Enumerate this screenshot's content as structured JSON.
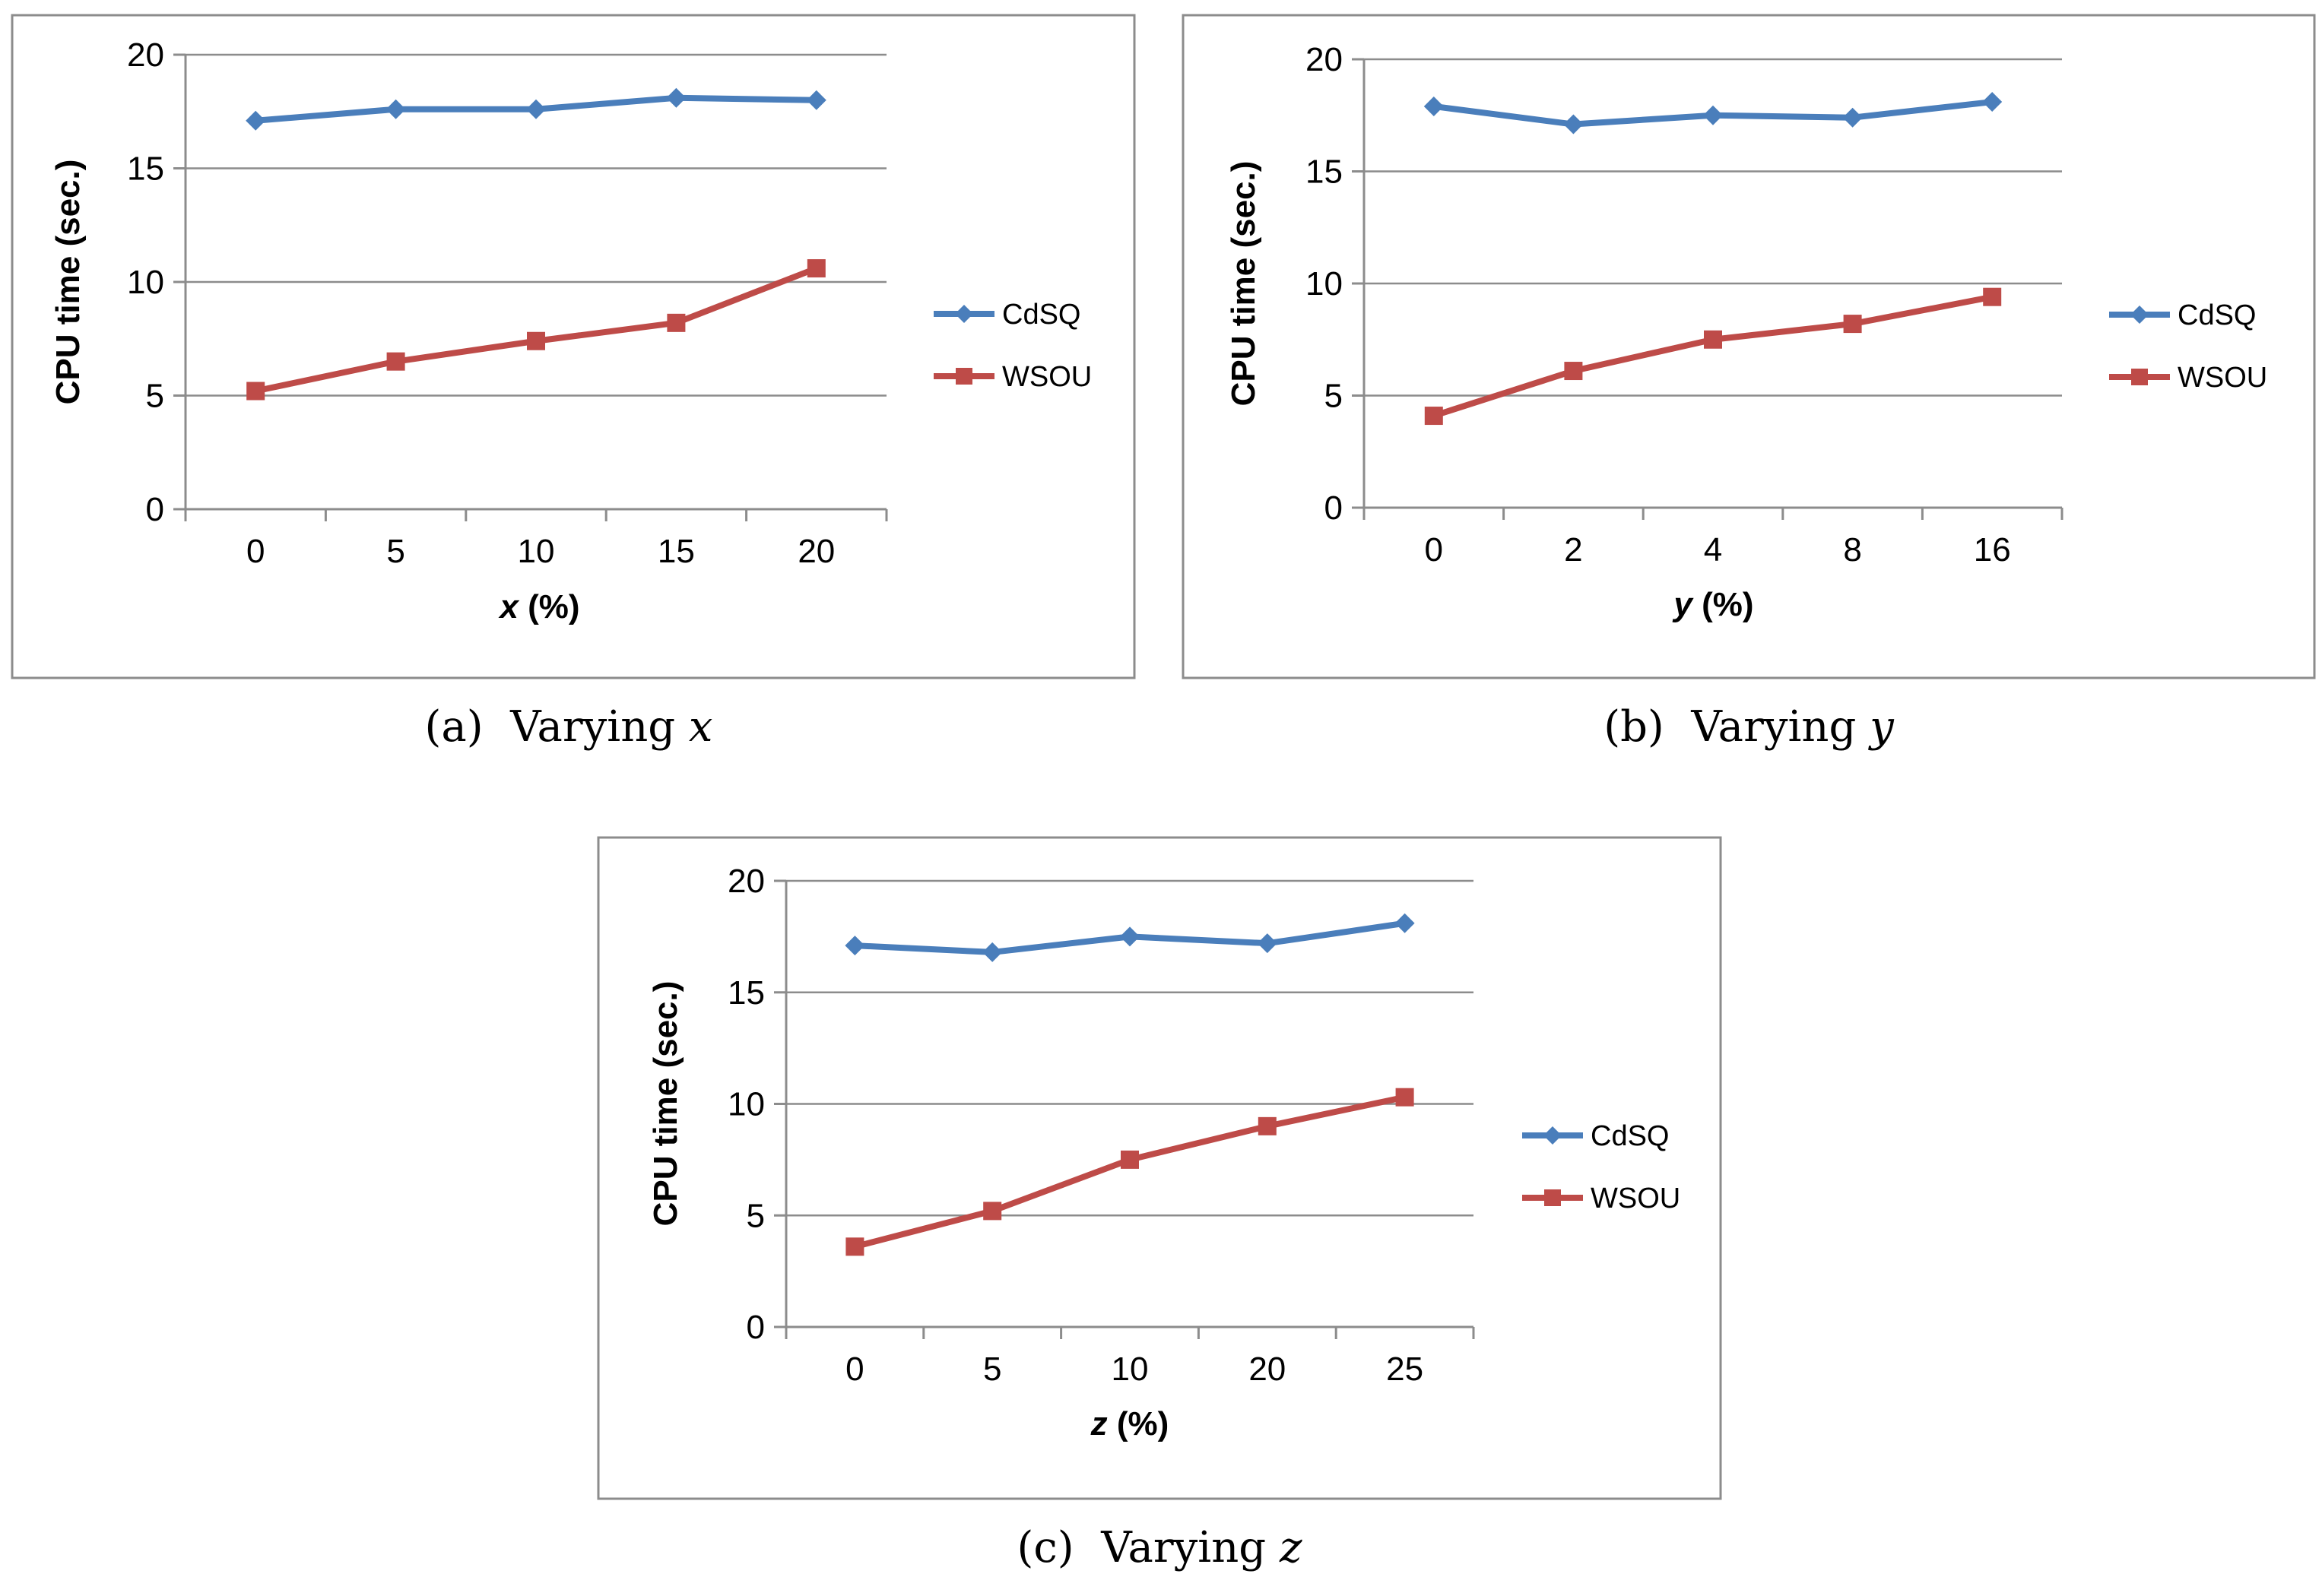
{
  "chart_data": [
    {
      "type": "line",
      "caption_prefix": "(a)  Varying ",
      "caption_var": "x",
      "title": "",
      "xlabel_var": "x",
      "xlabel_rest": " (%)",
      "ylabel": "CPU time (sec.)",
      "ylim": [
        0,
        20
      ],
      "yticks": [
        "0",
        "5",
        "10",
        "15",
        "20"
      ],
      "categories": [
        "0",
        "5",
        "10",
        "15",
        "20"
      ],
      "series": [
        {
          "name": "CdSQ",
          "color": "#4a7ebb",
          "marker": "diamond",
          "values": [
            17.1,
            17.6,
            17.6,
            18.1,
            18.0
          ]
        },
        {
          "name": "WSOU",
          "color": "#be4b48",
          "marker": "square",
          "values": [
            5.2,
            6.5,
            7.4,
            8.2,
            10.6
          ]
        }
      ],
      "legend": "right",
      "grid": true
    },
    {
      "type": "line",
      "caption_prefix": "(b)  Varying ",
      "caption_var": "y",
      "title": "",
      "xlabel_var": "y",
      "xlabel_rest": " (%)",
      "ylabel": "CPU time (sec.)",
      "ylim": [
        0,
        20
      ],
      "yticks": [
        "0",
        "5",
        "10",
        "15",
        "20"
      ],
      "categories": [
        "0",
        "2",
        "4",
        "8",
        "16"
      ],
      "series": [
        {
          "name": "CdSQ",
          "color": "#4a7ebb",
          "marker": "diamond",
          "values": [
            17.9,
            17.1,
            17.5,
            17.4,
            18.1
          ]
        },
        {
          "name": "WSOU",
          "color": "#be4b48",
          "marker": "square",
          "values": [
            4.1,
            6.1,
            7.5,
            8.2,
            9.4
          ]
        }
      ],
      "legend": "right",
      "grid": true
    },
    {
      "type": "line",
      "caption_prefix": "(c)  Varying ",
      "caption_var": "z",
      "title": "",
      "xlabel_var": "z",
      "xlabel_rest": " (%)",
      "ylabel": "CPU time (sec.)",
      "ylim": [
        0,
        20
      ],
      "yticks": [
        "0",
        "5",
        "10",
        "15",
        "20"
      ],
      "categories": [
        "0",
        "5",
        "10",
        "20",
        "25"
      ],
      "series": [
        {
          "name": "CdSQ",
          "color": "#4a7ebb",
          "marker": "diamond",
          "values": [
            17.1,
            16.8,
            17.5,
            17.2,
            18.1
          ]
        },
        {
          "name": "WSOU",
          "color": "#be4b48",
          "marker": "square",
          "values": [
            3.6,
            5.2,
            7.5,
            9.0,
            10.3
          ]
        }
      ],
      "legend": "right",
      "grid": true
    }
  ]
}
